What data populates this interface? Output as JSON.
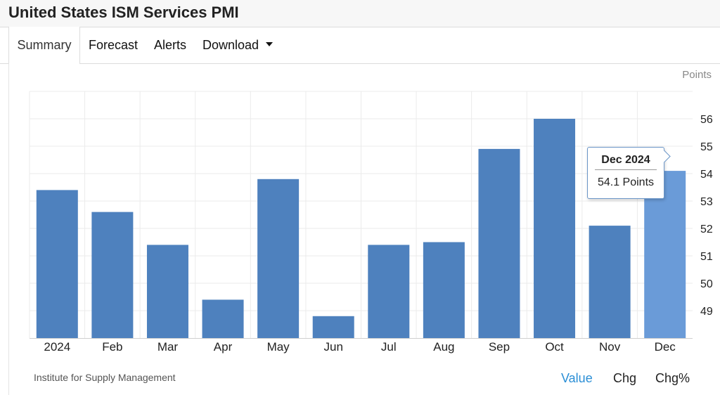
{
  "header": {
    "title": "United States ISM Services PMI"
  },
  "tabs": [
    {
      "label": "Summary",
      "active": true
    },
    {
      "label": "Forecast",
      "active": false
    },
    {
      "label": "Alerts",
      "active": false
    },
    {
      "label": "Download",
      "active": false
    }
  ],
  "chart": {
    "unit_label": "Points",
    "source": "Institute for Supply Management",
    "tooltip": {
      "title": "Dec 2024",
      "value": "54.1 Points"
    },
    "view_toggles": [
      {
        "label": "Value",
        "active": true
      },
      {
        "label": "Chg",
        "active": false
      },
      {
        "label": "Chg%",
        "active": false
      }
    ],
    "colors": {
      "bar": "#4e81be",
      "bar_highlight": "#6a9bd8",
      "grid": "#ebebeb",
      "axis_text": "#222222"
    }
  },
  "chart_data": {
    "type": "bar",
    "categories": [
      "2024",
      "Feb",
      "Mar",
      "Apr",
      "May",
      "Jun",
      "Jul",
      "Aug",
      "Sep",
      "Oct",
      "Nov",
      "Dec"
    ],
    "values": [
      53.4,
      52.6,
      51.4,
      49.4,
      53.8,
      48.8,
      51.4,
      51.5,
      54.9,
      56.0,
      52.1,
      54.1
    ],
    "ylim": [
      48.0,
      57.0
    ],
    "yticks": [
      49,
      50,
      51,
      52,
      53,
      54,
      55,
      56
    ],
    "ylabel": "Points",
    "highlight_index": 11,
    "grid": true
  }
}
